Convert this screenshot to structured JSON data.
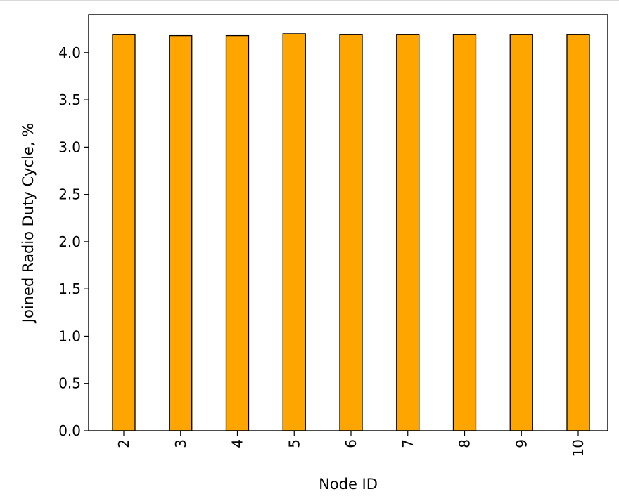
{
  "chart_data": {
    "type": "bar",
    "title": "",
    "xlabel": "Node ID",
    "ylabel": "Joined Radio Duty Cycle, %",
    "categories": [
      "2",
      "3",
      "4",
      "5",
      "6",
      "7",
      "8",
      "9",
      "10"
    ],
    "values": [
      4.19,
      4.18,
      4.18,
      4.2,
      4.19,
      4.19,
      4.19,
      4.19,
      4.19
    ],
    "ylim": [
      0,
      4.4
    ],
    "yticks": [
      0.0,
      0.5,
      1.0,
      1.5,
      2.0,
      2.5,
      3.0,
      3.5,
      4.0
    ],
    "ytick_labels": [
      "0.0",
      "0.5",
      "1.0",
      "1.5",
      "2.0",
      "2.5",
      "3.0",
      "3.5",
      "4.0"
    ],
    "grid": false,
    "legend": "none",
    "bar_color": "#ffa500",
    "edge_color": "#000000"
  }
}
